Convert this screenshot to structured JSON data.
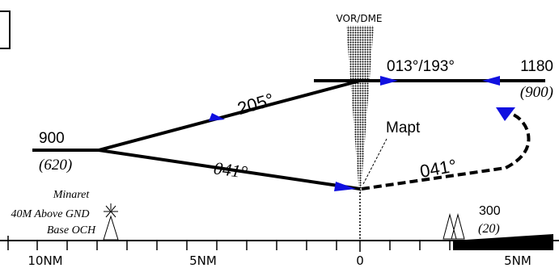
{
  "navaid": {
    "label": "VOR/DME"
  },
  "leg_outbound_lower": {
    "course": "041°"
  },
  "leg_inbound_upper": {
    "course": "205°"
  },
  "leg_missed": {
    "course": "041°"
  },
  "holding": {
    "courses": "013°/193°"
  },
  "left_fix": {
    "altitude": "900",
    "height": "(620)"
  },
  "right_fix": {
    "altitude": "1180",
    "height": "(900)"
  },
  "mapt": {
    "label": "Mapt"
  },
  "obstacle_minaret": {
    "line1": "Minaret",
    "line2": "40M Above GND",
    "line3": "Base OCH"
  },
  "obstacle_right": {
    "altitude": "300",
    "height": "(20)"
  },
  "scale": {
    "labels": [
      "10NM",
      "5NM",
      "0",
      "5NM"
    ]
  },
  "colors": {
    "arrow": "#1010e0",
    "line": "#000000"
  }
}
